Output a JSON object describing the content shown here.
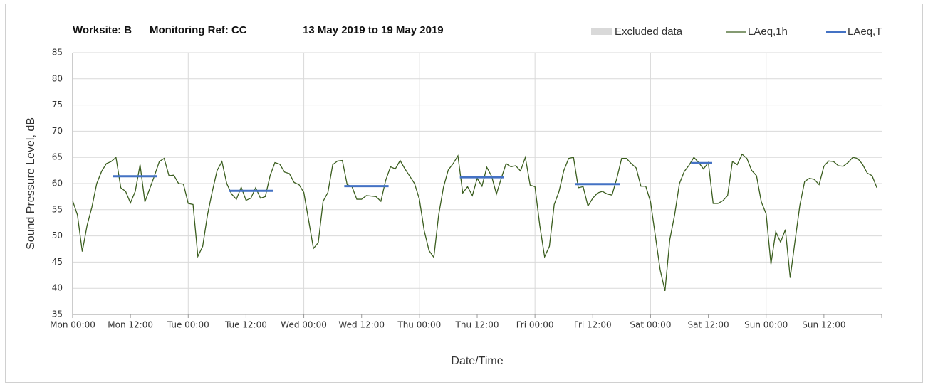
{
  "chart_data": {
    "type": "line",
    "title": "Worksite: B",
    "reference": "Monitoring Ref: CC",
    "period": "13 May 2019 to 19 May 2019",
    "xlabel": "Date/Time",
    "ylabel": "Sound Pressure Level, dB",
    "xlim": [
      0,
      168
    ],
    "xticks": [
      {
        "value": 0,
        "label": "Mon 00:00"
      },
      {
        "value": 12,
        "label": "Mon 12:00"
      },
      {
        "value": 24,
        "label": "Tue 00:00"
      },
      {
        "value": 36,
        "label": "Tue 12:00"
      },
      {
        "value": 48,
        "label": "Wed 00:00"
      },
      {
        "value": 60,
        "label": "Wed 12:00"
      },
      {
        "value": 72,
        "label": "Thu 00:00"
      },
      {
        "value": 84,
        "label": "Thu 12:00"
      },
      {
        "value": 96,
        "label": "Fri 00:00"
      },
      {
        "value": 108,
        "label": "Fri 12:00"
      },
      {
        "value": 120,
        "label": "Sat 00:00"
      },
      {
        "value": 132,
        "label": "Sat 12:00"
      },
      {
        "value": 144,
        "label": "Sun 00:00"
      },
      {
        "value": 156,
        "label": "Sun 12:00"
      }
    ],
    "ylim": [
      35,
      85
    ],
    "yticks": [
      35,
      40,
      45,
      50,
      55,
      60,
      65,
      70,
      75,
      80,
      85
    ],
    "grid": true,
    "legend": "top-right",
    "excluded": {
      "name": "Excluded data",
      "color": "#d9d9d9"
    },
    "x": [
      0,
      1,
      2,
      3,
      4,
      5,
      6,
      7,
      8,
      9,
      10,
      11,
      12,
      13,
      14,
      15,
      16,
      17,
      18,
      19,
      20,
      21,
      22,
      23,
      24,
      25,
      26,
      27,
      28,
      29,
      30,
      31,
      32,
      33,
      34,
      35,
      36,
      37,
      38,
      39,
      40,
      41,
      42,
      43,
      44,
      45,
      46,
      47,
      48,
      49,
      50,
      51,
      52,
      53,
      54,
      55,
      56,
      57,
      58,
      59,
      60,
      61,
      62,
      63,
      64,
      65,
      66,
      67,
      68,
      69,
      70,
      71,
      72,
      73,
      74,
      75,
      76,
      77,
      78,
      79,
      80,
      81,
      82,
      83,
      84,
      85,
      86,
      87,
      88,
      89,
      90,
      91,
      92,
      93,
      94,
      95,
      96,
      97,
      98,
      99,
      100,
      101,
      102,
      103,
      104,
      105,
      106,
      107,
      108,
      109,
      110,
      111,
      112,
      113,
      114,
      115,
      116,
      117,
      118,
      119,
      120,
      121,
      122,
      123,
      124,
      125,
      126,
      127,
      128,
      129,
      130,
      131,
      132,
      133,
      134,
      135,
      136,
      137,
      138,
      139,
      140,
      141,
      142,
      143,
      144,
      145,
      146,
      147,
      148,
      149,
      150,
      151,
      152,
      153,
      154,
      155,
      156,
      157,
      158,
      159,
      160,
      161,
      162,
      163,
      164,
      165,
      166,
      167
    ],
    "series": [
      {
        "name": "LAeq,1h",
        "color": "#3b5e1f",
        "values": [
          56.7,
          54,
          47,
          52,
          55.5,
          60,
          62.3,
          63.8,
          64.2,
          65,
          59.2,
          58.5,
          56.3,
          58.5,
          63.6,
          56.5,
          59,
          61.5,
          64.2,
          64.8,
          61.5,
          61.6,
          60,
          59.9,
          56.2,
          56,
          46.1,
          48,
          54,
          58.5,
          62.5,
          64.2,
          60,
          58,
          57,
          59.3,
          56.8,
          57.2,
          59.2,
          57.2,
          57.5,
          61.5,
          64,
          63.7,
          62.2,
          61.9,
          60.2,
          59.8,
          58.3,
          53,
          47.6,
          48.7,
          56.6,
          58.3,
          63.6,
          64.3,
          64.4,
          59.8,
          59.4,
          57,
          57,
          57.7,
          57.6,
          57.5,
          56.6,
          60.6,
          63.2,
          62.8,
          64.4,
          62.8,
          61.4,
          60,
          57,
          51,
          47.2,
          45.9,
          54,
          59.3,
          62.6,
          63.8,
          65.3,
          58.2,
          59.4,
          57.7,
          61,
          59.5,
          63.1,
          61.4,
          58,
          61,
          63.8,
          63.2,
          63.4,
          62.4,
          65,
          59.7,
          59.4,
          52,
          46,
          48,
          56,
          58.5,
          62.5,
          64.8,
          65,
          59.2,
          59.4,
          55.7,
          57.2,
          58.2,
          58.5,
          58,
          57.8,
          61,
          64.8,
          64.8,
          63.8,
          63,
          59.5,
          59.5,
          56.5,
          50,
          43.5,
          39.5,
          49.3,
          54,
          60,
          62.3,
          63.5,
          65,
          64,
          62.8,
          64,
          56.2,
          56.2,
          56.7,
          57.7,
          64.2,
          63.6,
          65.6,
          64.8,
          62.5,
          61.5,
          56.5,
          54.2,
          44.6,
          50.8,
          48.8,
          51.2,
          42,
          49,
          55.8,
          60.4,
          61,
          60.8,
          59.8,
          63.3,
          64.3,
          64.2,
          63.4,
          63.3,
          64,
          65,
          64.8,
          63.7,
          62,
          61.5,
          59.2
        ]
      },
      {
        "name": "LAeq,T",
        "color": "#4472c4",
        "segments": [
          {
            "x": [
              8.4,
              17.6
            ],
            "value": 61.4
          },
          {
            "x": [
              32.4,
              41.6
            ],
            "value": 58.6
          },
          {
            "x": [
              56.4,
              65.6
            ],
            "value": 59.5
          },
          {
            "x": [
              80.4,
              89.6
            ],
            "value": 61.2
          },
          {
            "x": [
              104.4,
              113.6
            ],
            "value": 59.9
          },
          {
            "x": [
              128.4,
              132.8
            ],
            "value": 63.9
          }
        ]
      }
    ]
  }
}
